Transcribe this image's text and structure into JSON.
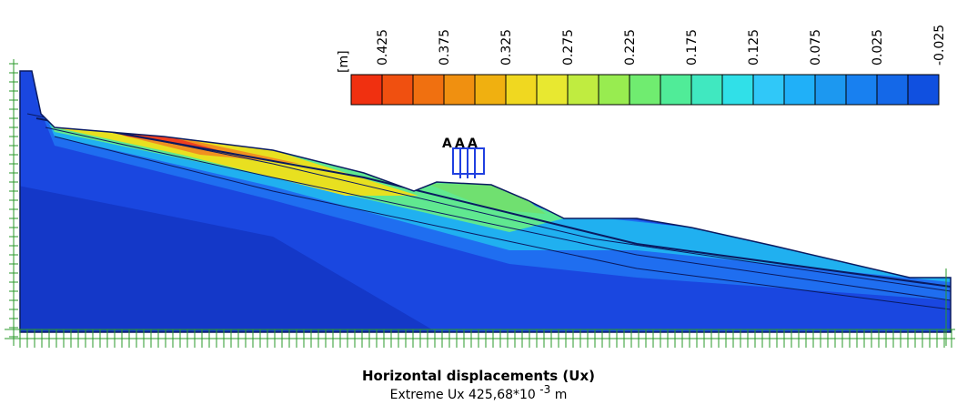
{
  "legend": {
    "unit": "[m]",
    "labels": [
      "0.425",
      "0.375",
      "0.325",
      "0.275",
      "0.225",
      "0.175",
      "0.125",
      "0.075",
      "0.025",
      "-0.025"
    ]
  },
  "loads": [
    "A",
    "A",
    "A"
  ],
  "title": "Horizontal displacements (Ux)",
  "subtitle": {
    "text": "Extreme Ux 425,68*10",
    "exponent": "-3",
    "unit": "m"
  }
}
